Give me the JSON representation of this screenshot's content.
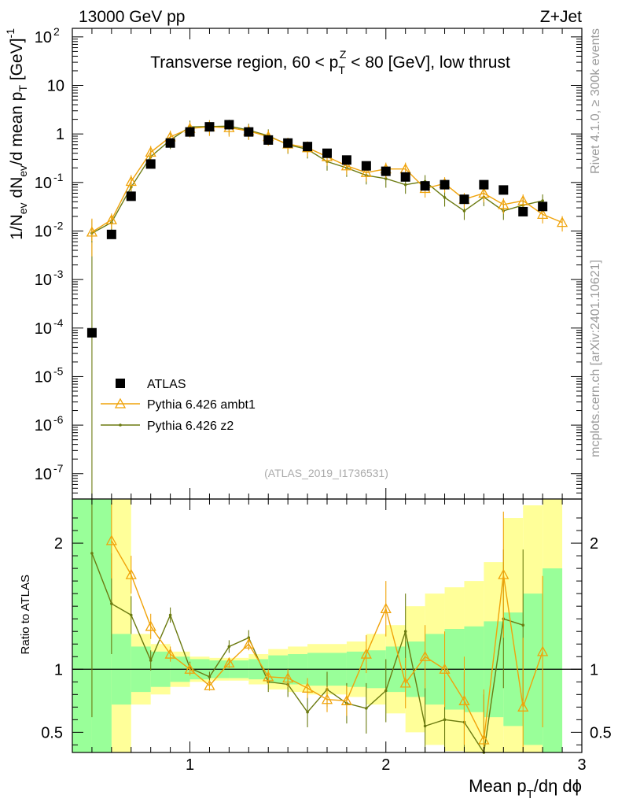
{
  "header": {
    "left": "13000 GeV pp",
    "right": "Z+Jet"
  },
  "side": {
    "rivet": "Rivet 4.1.0, ≥ 300k events",
    "mcplots": "mcplots.cern.ch [arXiv:2401.10621]"
  },
  "chart_data": {
    "type": "scatter",
    "title": {
      "prefix": "Transverse region, 60 < p",
      "sup": "Z",
      "sub": "T",
      "suffix": " < 80 [GeV], low thrust"
    },
    "ylabel": {
      "a": "1/N",
      "a_sub": "ev",
      "b": " dN",
      "b_sub": "ev",
      "c": "/d mean p",
      "c_sub": "T",
      "d": " [GeV]",
      "d_sup": "-1"
    },
    "xlabel": {
      "a": "Mean p",
      "a_sub": "T",
      "b": "/dη dϕ"
    },
    "ratio_ylabel": "Ratio to ATLAS",
    "watermark": "(ATLAS_2019_I1736531)",
    "xlim": [
      0.4,
      3.0
    ],
    "ylim": [
      3e-08,
      150
    ],
    "ratio_ylim": [
      0.34,
      2.35
    ],
    "x_ticks": [
      {
        "value": 1,
        "label": "1"
      },
      {
        "value": 2,
        "label": "2"
      },
      {
        "value": 3,
        "label": "3"
      }
    ],
    "y_ticks": [
      {
        "exp": -7,
        "label": "10",
        "sup": "-7"
      },
      {
        "exp": -6,
        "label": "10",
        "sup": "-6"
      },
      {
        "exp": -5,
        "label": "10",
        "sup": "-5"
      },
      {
        "exp": -4,
        "label": "10",
        "sup": "-4"
      },
      {
        "exp": -3,
        "label": "10",
        "sup": "-3"
      },
      {
        "exp": -2,
        "label": "10",
        "sup": "-2"
      },
      {
        "exp": -1,
        "label": "10",
        "sup": "-1"
      },
      {
        "exp": 0,
        "label": "1",
        "sup": ""
      },
      {
        "exp": 1,
        "label": "10",
        "sup": ""
      },
      {
        "exp": 2,
        "label": "10",
        "sup": "2"
      }
    ],
    "ratio_ticks": [
      {
        "value": 0.5,
        "label": "0.5"
      },
      {
        "value": 1,
        "label": "1"
      },
      {
        "value": 2,
        "label": "2"
      }
    ],
    "legend": [
      {
        "name": "ATLAS",
        "color": "#000000",
        "marker": "square"
      },
      {
        "name": "Pythia 6.426 ambt1",
        "color": "#f0a30a",
        "marker": "triangle"
      },
      {
        "name": "Pythia 6.426 z2",
        "color": "#6b7a10",
        "marker": "dot"
      }
    ],
    "bins": [
      0.4,
      0.5,
      0.6,
      0.7,
      0.8,
      0.9,
      1.0,
      1.1,
      1.2,
      1.3,
      1.4,
      1.5,
      1.6,
      1.7,
      1.8,
      1.9,
      2.0,
      2.1,
      2.2,
      2.3,
      2.4,
      2.5,
      2.6,
      2.7,
      2.8,
      2.9,
      3.0
    ],
    "x": [
      0.5,
      0.6,
      0.7,
      0.8,
      0.9,
      1.0,
      1.1,
      1.2,
      1.3,
      1.4,
      1.5,
      1.6,
      1.7,
      1.8,
      1.9,
      2.0,
      2.1,
      2.2,
      2.3,
      2.4,
      2.5,
      2.6,
      2.7,
      2.8,
      2.9
    ],
    "band_green": [
      [
        0.0,
        5.0
      ],
      [
        0.0,
        5.0
      ],
      [
        0.72,
        1.28
      ],
      [
        0.82,
        1.18
      ],
      [
        0.86,
        1.14
      ],
      [
        0.9,
        1.1
      ],
      [
        0.92,
        1.08
      ],
      [
        0.93,
        1.07
      ],
      [
        0.93,
        1.07
      ],
      [
        0.92,
        1.08
      ],
      [
        0.89,
        1.11
      ],
      [
        0.88,
        1.12
      ],
      [
        0.87,
        1.13
      ],
      [
        0.87,
        1.13
      ],
      [
        0.86,
        1.14
      ],
      [
        0.85,
        1.15
      ],
      [
        0.82,
        1.18
      ],
      [
        0.78,
        1.22
      ],
      [
        0.72,
        1.28
      ],
      [
        0.68,
        1.32
      ],
      [
        0.66,
        1.34
      ],
      [
        0.62,
        1.38
      ],
      [
        0.55,
        1.45
      ],
      [
        0.4,
        1.6
      ],
      [
        0.2,
        1.8
      ]
    ],
    "band_yellow": [
      [
        0.0,
        5.0
      ],
      [
        0.0,
        5.0
      ],
      [
        0.0,
        5.0
      ],
      [
        0.72,
        1.28
      ],
      [
        0.8,
        1.2
      ],
      [
        0.86,
        1.14
      ],
      [
        0.9,
        1.1
      ],
      [
        0.91,
        1.09
      ],
      [
        0.91,
        1.09
      ],
      [
        0.88,
        1.12
      ],
      [
        0.84,
        1.16
      ],
      [
        0.82,
        1.18
      ],
      [
        0.8,
        1.2
      ],
      [
        0.8,
        1.2
      ],
      [
        0.78,
        1.22
      ],
      [
        0.72,
        1.28
      ],
      [
        0.65,
        1.35
      ],
      [
        0.5,
        1.5
      ],
      [
        0.4,
        1.6
      ],
      [
        0.35,
        1.65
      ],
      [
        0.3,
        1.7
      ],
      [
        0.2,
        1.85
      ],
      [
        0.0,
        2.2
      ],
      [
        0.0,
        2.3
      ],
      [
        0.0,
        5.0
      ]
    ],
    "series": [
      {
        "name": "ATLAS",
        "values": [
          8e-05,
          0.0085,
          0.052,
          0.24,
          0.65,
          1.1,
          1.4,
          1.55,
          1.1,
          0.75,
          0.65,
          0.55,
          0.4,
          0.29,
          0.22,
          0.17,
          0.13,
          0.085,
          0.09,
          0.045,
          0.09,
          0.07,
          0.025,
          0.032,
          null
        ]
      },
      {
        "name": "Pythia 6.426 ambt1",
        "values": [
          0.0095,
          0.017,
          0.105,
          0.42,
          0.87,
          1.3,
          1.4,
          1.35,
          1.15,
          0.88,
          0.62,
          0.52,
          0.34,
          0.22,
          0.16,
          0.19,
          0.19,
          0.075,
          0.095,
          0.045,
          0.06,
          0.035,
          0.042,
          0.022,
          0.015
        ]
      },
      {
        "name": "Pythia 6.426 z2",
        "values": [
          0.009,
          0.015,
          0.08,
          0.34,
          0.75,
          1.4,
          1.42,
          1.45,
          1.2,
          0.92,
          0.6,
          0.48,
          0.27,
          0.2,
          0.14,
          0.12,
          0.09,
          0.105,
          0.049,
          0.026,
          0.05,
          0.026,
          0.034,
          0.042,
          null
        ]
      }
    ],
    "ratios": [
      {
        "name": "Pythia 6.426 ambt1",
        "values": [
          null,
          2.02,
          1.75,
          1.34,
          1.12,
          1.0,
          0.87,
          1.05,
          1.2,
          0.94,
          0.93,
          0.85,
          0.76,
          0.75,
          1.12,
          1.48,
          0.89,
          1.1,
          1.0,
          0.75,
          0.44,
          1.75,
          0.7,
          1.14,
          null
        ],
        "errors": [
          null,
          0.3,
          0.15,
          0.1,
          0.06,
          0.05,
          0.04,
          0.04,
          0.05,
          0.06,
          0.07,
          0.08,
          0.1,
          0.12,
          0.15,
          0.22,
          0.2,
          0.25,
          0.3,
          0.35,
          0.4,
          0.5,
          0.55,
          0.6,
          null
        ]
      },
      {
        "name": "Pythia 6.426 z2",
        "values": [
          1.92,
          1.52,
          1.43,
          1.07,
          1.43,
          1.01,
          0.94,
          1.18,
          1.25,
          0.9,
          0.88,
          0.66,
          0.84,
          0.73,
          0.69,
          0.83,
          1.3,
          0.55,
          0.6,
          0.58,
          0.3,
          1.4,
          1.35,
          null,
          null
        ],
        "errors": [
          1.3,
          0.4,
          0.15,
          0.08,
          0.06,
          0.05,
          0.04,
          0.05,
          0.06,
          0.08,
          0.1,
          0.12,
          0.14,
          0.16,
          0.2,
          0.25,
          0.3,
          0.3,
          0.35,
          0.4,
          0.5,
          0.55,
          0.6,
          null,
          null
        ]
      }
    ]
  }
}
